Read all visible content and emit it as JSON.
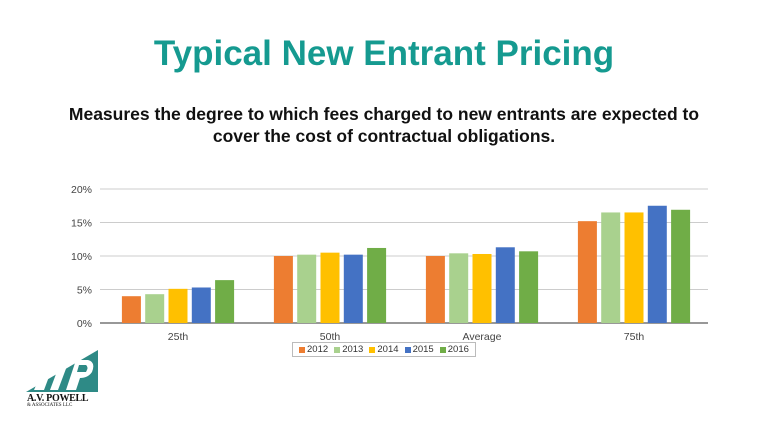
{
  "title": "Typical New Entrant Pricing",
  "subtitle": "Measures the degree to which fees charged to new entrants are expected to cover the cost of contractual obligations.",
  "logo": {
    "text": "A.V. POWELL",
    "subtext": "& ASSOCIATES LLC"
  },
  "chart_data": {
    "type": "bar",
    "categories": [
      "25th",
      "50th",
      "Average",
      "75th"
    ],
    "series": [
      {
        "name": "2012",
        "color": "#ed7d31",
        "values": [
          4.0,
          10.0,
          10.0,
          15.2
        ]
      },
      {
        "name": "2013",
        "color": "#a9d18e",
        "values": [
          4.3,
          10.2,
          10.4,
          16.5
        ]
      },
      {
        "name": "2014",
        "color": "#ffc000",
        "values": [
          5.1,
          10.5,
          10.3,
          16.5
        ]
      },
      {
        "name": "2015",
        "color": "#4472c4",
        "values": [
          5.3,
          10.2,
          11.3,
          17.5
        ]
      },
      {
        "name": "2016",
        "color": "#70ad47",
        "values": [
          6.4,
          11.2,
          10.7,
          16.9
        ]
      }
    ],
    "yticks": [
      "0%",
      "5%",
      "10%",
      "15%",
      "20%"
    ],
    "ylim": [
      0,
      20
    ],
    "grid": true,
    "legend": "bottom"
  }
}
